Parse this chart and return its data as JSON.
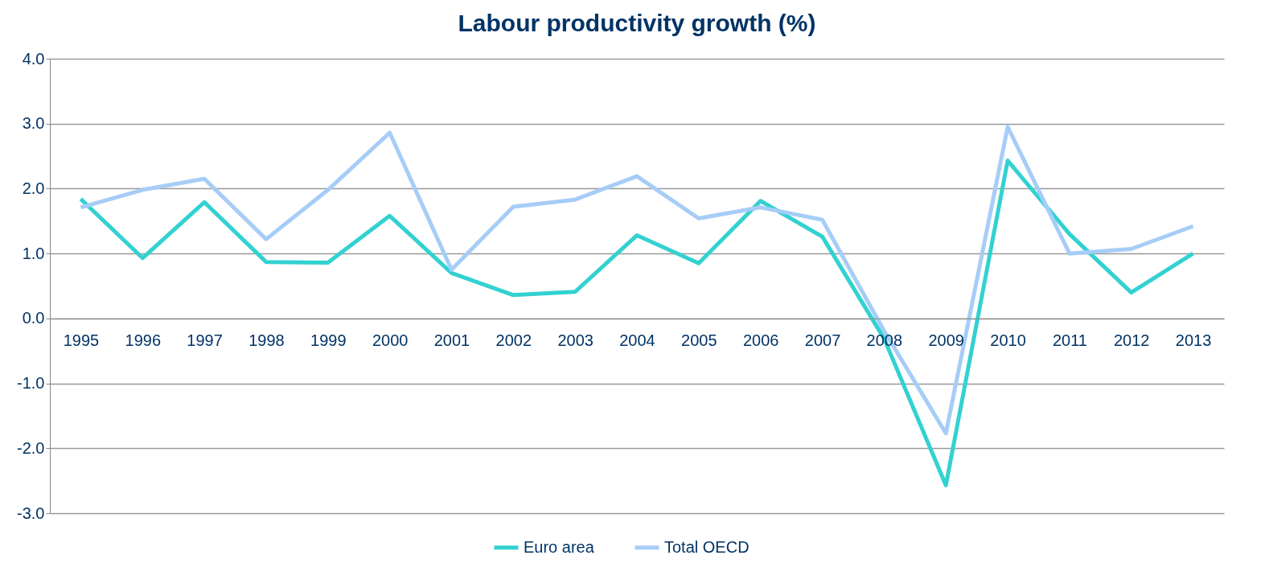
{
  "chart_data": {
    "type": "line",
    "title": "Labour productivity growth (%)",
    "categories": [
      "1995",
      "1996",
      "1997",
      "1998",
      "1999",
      "2000",
      "2001",
      "2002",
      "2003",
      "2004",
      "2005",
      "2006",
      "2007",
      "2008",
      "2009",
      "2010",
      "2011",
      "2012",
      "2013"
    ],
    "series": [
      {
        "name": "Euro area",
        "color": "#33d1d1",
        "values": [
          1.84,
          0.93,
          1.79,
          0.87,
          0.86,
          1.58,
          0.7,
          0.36,
          0.41,
          1.28,
          0.85,
          1.81,
          1.26,
          -0.31,
          -2.57,
          2.43,
          1.3,
          0.4,
          1.0
        ]
      },
      {
        "name": "Total OECD",
        "color": "#a6cdf7",
        "values": [
          1.71,
          1.98,
          2.15,
          1.22,
          1.98,
          2.86,
          0.75,
          1.72,
          1.83,
          2.19,
          1.54,
          1.71,
          1.52,
          -0.19,
          -1.77,
          2.95,
          1.0,
          1.07,
          1.42
        ]
      }
    ],
    "ylim": [
      -3,
      4
    ],
    "yticks": [
      {
        "value": -3,
        "label": "-3.0"
      },
      {
        "value": -2,
        "label": "-2.0"
      },
      {
        "value": -1,
        "label": "-1.0"
      },
      {
        "value": 0,
        "label": "0.0"
      },
      {
        "value": 1,
        "label": "1.0"
      },
      {
        "value": 2,
        "label": "2.0"
      },
      {
        "value": 3,
        "label": "3.0"
      },
      {
        "value": 4,
        "label": "4.0"
      }
    ],
    "grid": "y",
    "legend": "bottom",
    "marker": "none",
    "line_style": "solid"
  }
}
